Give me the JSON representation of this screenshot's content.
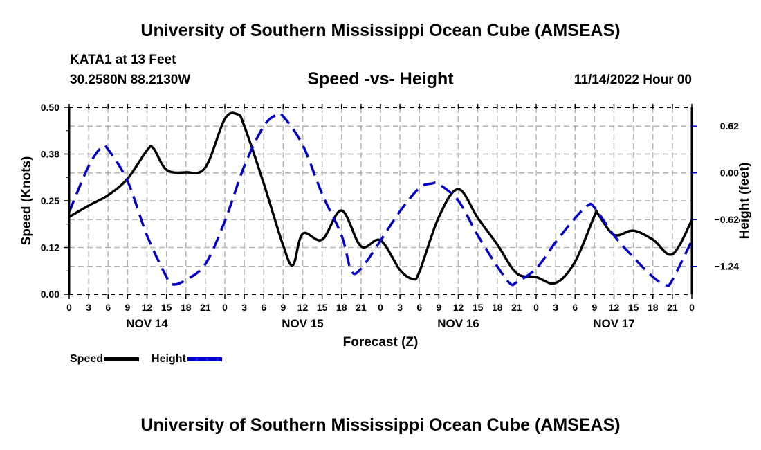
{
  "header": {
    "title": "University of Southern Mississippi Ocean Cube (AMSEAS)",
    "station": "KATA1 at 13 Feet",
    "coordinates": "30.2580N  88.2130W",
    "subtitle": "Speed -vs- Height",
    "datetime": "11/14/2022 Hour 00"
  },
  "footer": {
    "title": "University of Southern Mississippi Ocean Cube (AMSEAS)"
  },
  "legend": {
    "items": [
      {
        "label": "Speed",
        "style": "solid",
        "color": "#000000"
      },
      {
        "label": "Height",
        "style": "dashed",
        "color": "#0000cc"
      }
    ],
    "placement": "bottom-left"
  },
  "chart_data": {
    "type": "line",
    "title": "Speed -vs- Height",
    "xlabel": "Forecast (Z)",
    "ylabel": "Speed (Knots)",
    "y2label": "Height (feet)",
    "grid": true,
    "xlim": [
      0,
      96
    ],
    "x_units": "hours since 11/14/2022 00Z",
    "x_tick_labels": [
      "0",
      "3",
      "6",
      "9",
      "12",
      "15",
      "18",
      "21",
      "0",
      "3",
      "6",
      "9",
      "12",
      "15",
      "18",
      "21",
      "0",
      "3",
      "6",
      "9",
      "12",
      "15",
      "18",
      "21",
      "0",
      "3",
      "6",
      "9",
      "12",
      "15",
      "18",
      "21",
      "0"
    ],
    "x_day_labels": [
      {
        "label": "NOV 14",
        "center_hour": 12
      },
      {
        "label": "NOV 15",
        "center_hour": 36
      },
      {
        "label": "NOV 16",
        "center_hour": 60
      },
      {
        "label": "NOV 17",
        "center_hour": 84
      }
    ],
    "ylim": [
      0,
      0.5
    ],
    "y_ticks": [
      0.0,
      0.125,
      0.25,
      0.375,
      0.5
    ],
    "y_tick_labels": [
      "0.00",
      "0.12",
      "0.25",
      "0.38",
      "0.50"
    ],
    "y2lim": [
      -1.61,
      0.87
    ],
    "y2_ticks": [
      0.62,
      0.0,
      -0.62,
      -1.24
    ],
    "y2_tick_labels": [
      "0.62",
      "0.00",
      "−0.62",
      "−1.24"
    ],
    "series": [
      {
        "name": "Speed",
        "axis": "left",
        "color": "#000000",
        "style": "solid",
        "x": [
          0,
          3,
          6,
          9,
          12,
          13,
          15,
          18,
          21,
          24,
          26,
          27,
          30,
          33,
          34.5,
          36,
          39,
          42,
          45,
          48,
          51,
          53,
          54,
          57,
          60,
          63,
          66,
          69,
          72,
          75,
          78,
          81,
          81.5,
          84,
          87,
          90,
          93,
          96
        ],
        "values": [
          0.207,
          0.237,
          0.265,
          0.309,
          0.385,
          0.39,
          0.333,
          0.326,
          0.339,
          0.469,
          0.481,
          0.45,
          0.296,
          0.13,
          0.078,
          0.162,
          0.146,
          0.224,
          0.128,
          0.144,
          0.065,
          0.041,
          0.06,
          0.207,
          0.281,
          0.204,
          0.133,
          0.056,
          0.046,
          0.03,
          0.087,
          0.21,
          0.215,
          0.159,
          0.17,
          0.146,
          0.107,
          0.198
        ]
      },
      {
        "name": "Height",
        "axis": "right",
        "color": "#0000cc",
        "style": "dashed",
        "x": [
          0,
          3,
          5,
          6,
          9,
          12,
          15,
          16,
          18,
          21,
          24,
          27,
          30,
          32,
          33,
          36,
          39,
          42,
          43.5,
          45,
          48,
          51,
          54,
          56,
          57,
          60,
          63,
          66,
          68,
          69,
          72,
          75,
          78,
          80,
          81,
          84,
          87,
          90,
          92,
          93,
          96
        ],
        "values": [
          -0.52,
          0.09,
          0.34,
          0.31,
          -0.11,
          -0.83,
          -1.38,
          -1.48,
          -1.42,
          -1.21,
          -0.64,
          0.09,
          0.62,
          0.77,
          0.75,
          0.37,
          -0.28,
          -0.83,
          -1.3,
          -1.27,
          -0.9,
          -0.51,
          -0.2,
          -0.14,
          -0.15,
          -0.37,
          -0.83,
          -1.24,
          -1.47,
          -1.45,
          -1.27,
          -0.92,
          -0.6,
          -0.43,
          -0.46,
          -0.83,
          -1.12,
          -1.38,
          -1.49,
          -1.42,
          -0.9
        ]
      }
    ]
  }
}
